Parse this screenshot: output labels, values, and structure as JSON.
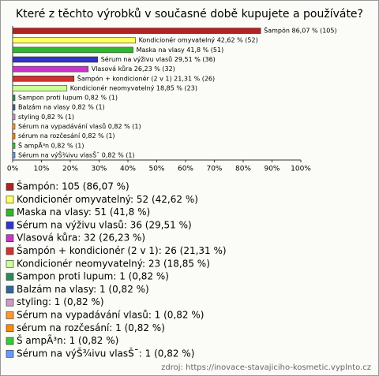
{
  "chart_data": {
    "type": "bar",
    "orientation": "horizontal",
    "title": "Které z těchto výrobků v současné době kupujete a používáte?",
    "categories": [
      "Šampón",
      "Kondicionér omyvatelný",
      "Maska na vlasy",
      "Sérum na výživu vlasů",
      "Vlasová kůra",
      "Šampón + kondicionér (2 v 1)",
      "Kondicionér neomyvatelný",
      "Sampon proti lupum",
      "Balzám na vlasy",
      "styling",
      "Sérum na vypadávání vlasů",
      "sérum na rozčesání",
      "Š ampÃ³n",
      "Sérum na výŠ¾ivu vlasŠ¯"
    ],
    "values": [
      86.07,
      42.62,
      41.8,
      29.51,
      26.23,
      21.31,
      18.85,
      0.82,
      0.82,
      0.82,
      0.82,
      0.82,
      0.82,
      0.82
    ],
    "counts": [
      105,
      52,
      51,
      36,
      32,
      26,
      23,
      1,
      1,
      1,
      1,
      1,
      1,
      1
    ],
    "value_labels": [
      "Šampón 86,07 % (105)",
      "Kondicionér omyvatelný 42,62 % (52)",
      "Maska na vlasy 41,8 % (51)",
      "Sérum na výživu vlasů 29,51 % (36)",
      "Vlasová kůra 26,23 % (32)",
      "Šampón + kondicionér (2 v 1) 21,31 % (26)",
      "Kondicionér neomyvatelný 18,85 % (23)",
      "Sampon proti lupum 0,82 % (1)",
      "Balzám na vlasy 0,82 % (1)",
      "styling 0,82 % (1)",
      "Sérum na vypadávání vlasů 0,82 % (1)",
      "sérum na rozčesání 0,82 % (1)",
      "Š ampÃ³n 0,82 % (1)",
      "Sérum na výŠ¾ivu vlasŠ¯ 0,82 % (1)"
    ],
    "legend_labels": [
      "Šampón: 105 (86,07 %)",
      "Kondicionér omyvatelný: 52 (42,62 %)",
      "Maska na vlasy: 51 (41,8 %)",
      "Sérum na výživu vlasů: 36 (29,51 %)",
      "Vlasová kůra: 32 (26,23 %)",
      "Šampón + kondicionér (2 v 1): 26 (21,31 %)",
      "Kondicionér neomyvatelný: 23 (18,85 %)",
      "Sampon proti lupum: 1 (0,82 %)",
      "Balzám na vlasy: 1 (0,82 %)",
      "styling: 1 (0,82 %)",
      "Sérum na vypadávání vlasů: 1 (0,82 %)",
      "sérum na rozčesání: 1 (0,82 %)",
      "Š ampÃ³n: 1 (0,82 %)",
      "Sérum na výŠ¾ivu vlasŠ¯: 1 (0,82 %)"
    ],
    "colors": [
      "#b22222",
      "#ffff66",
      "#2db82d",
      "#3333cc",
      "#cc33cc",
      "#cc3333",
      "#ccff99",
      "#2e8b57",
      "#336699",
      "#cc99cc",
      "#ff9933",
      "#ff8800",
      "#33cc33",
      "#6699ff"
    ],
    "xlim": [
      0,
      100
    ],
    "xticks": [
      {
        "value": 0,
        "label": "0%"
      },
      {
        "value": 10,
        "label": "10%"
      },
      {
        "value": 20,
        "label": "20%"
      },
      {
        "value": 30,
        "label": "30%"
      },
      {
        "value": 40,
        "label": "40%"
      },
      {
        "value": 50,
        "label": "50%"
      },
      {
        "value": 60,
        "label": "60%"
      },
      {
        "value": 70,
        "label": "70%"
      },
      {
        "value": 80,
        "label": "80%"
      },
      {
        "value": 90,
        "label": "90%"
      },
      {
        "value": 100,
        "label": "100%"
      }
    ],
    "source": "zdroj: https://inovace-stavajiciho-kosmetic.vyplnto.cz"
  }
}
